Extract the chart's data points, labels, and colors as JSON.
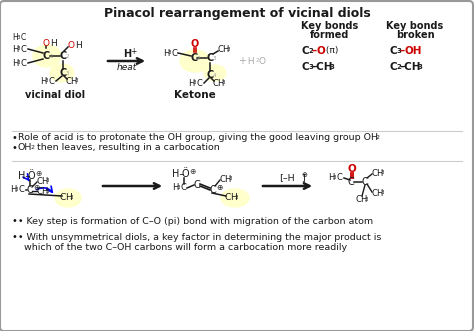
{
  "title": "Pinacol rearrangement of vicinal diols",
  "bg_color": "#ffffff",
  "border_color": "#888888",
  "text_color": "#1a1a1a",
  "red_color": "#cc0000",
  "gray_color": "#aaaaaa",
  "highlight_color": "#ffffcc",
  "bullet1": "• Role of acid is to protonate the OH group, giving the good leaving group OH",
  "bullet2a": "• OH",
  "bullet2b": " then leaves, resulting in a carbocation",
  "bullet3": "• Key step is formation of C–O (pi) bond with migration of the carbon atom",
  "bullet4a": "• With unsymmetrical diols, a key factor in determining the major product is",
  "bullet4b": "  which of the two C–OH carbons will form a carbocation more readily"
}
